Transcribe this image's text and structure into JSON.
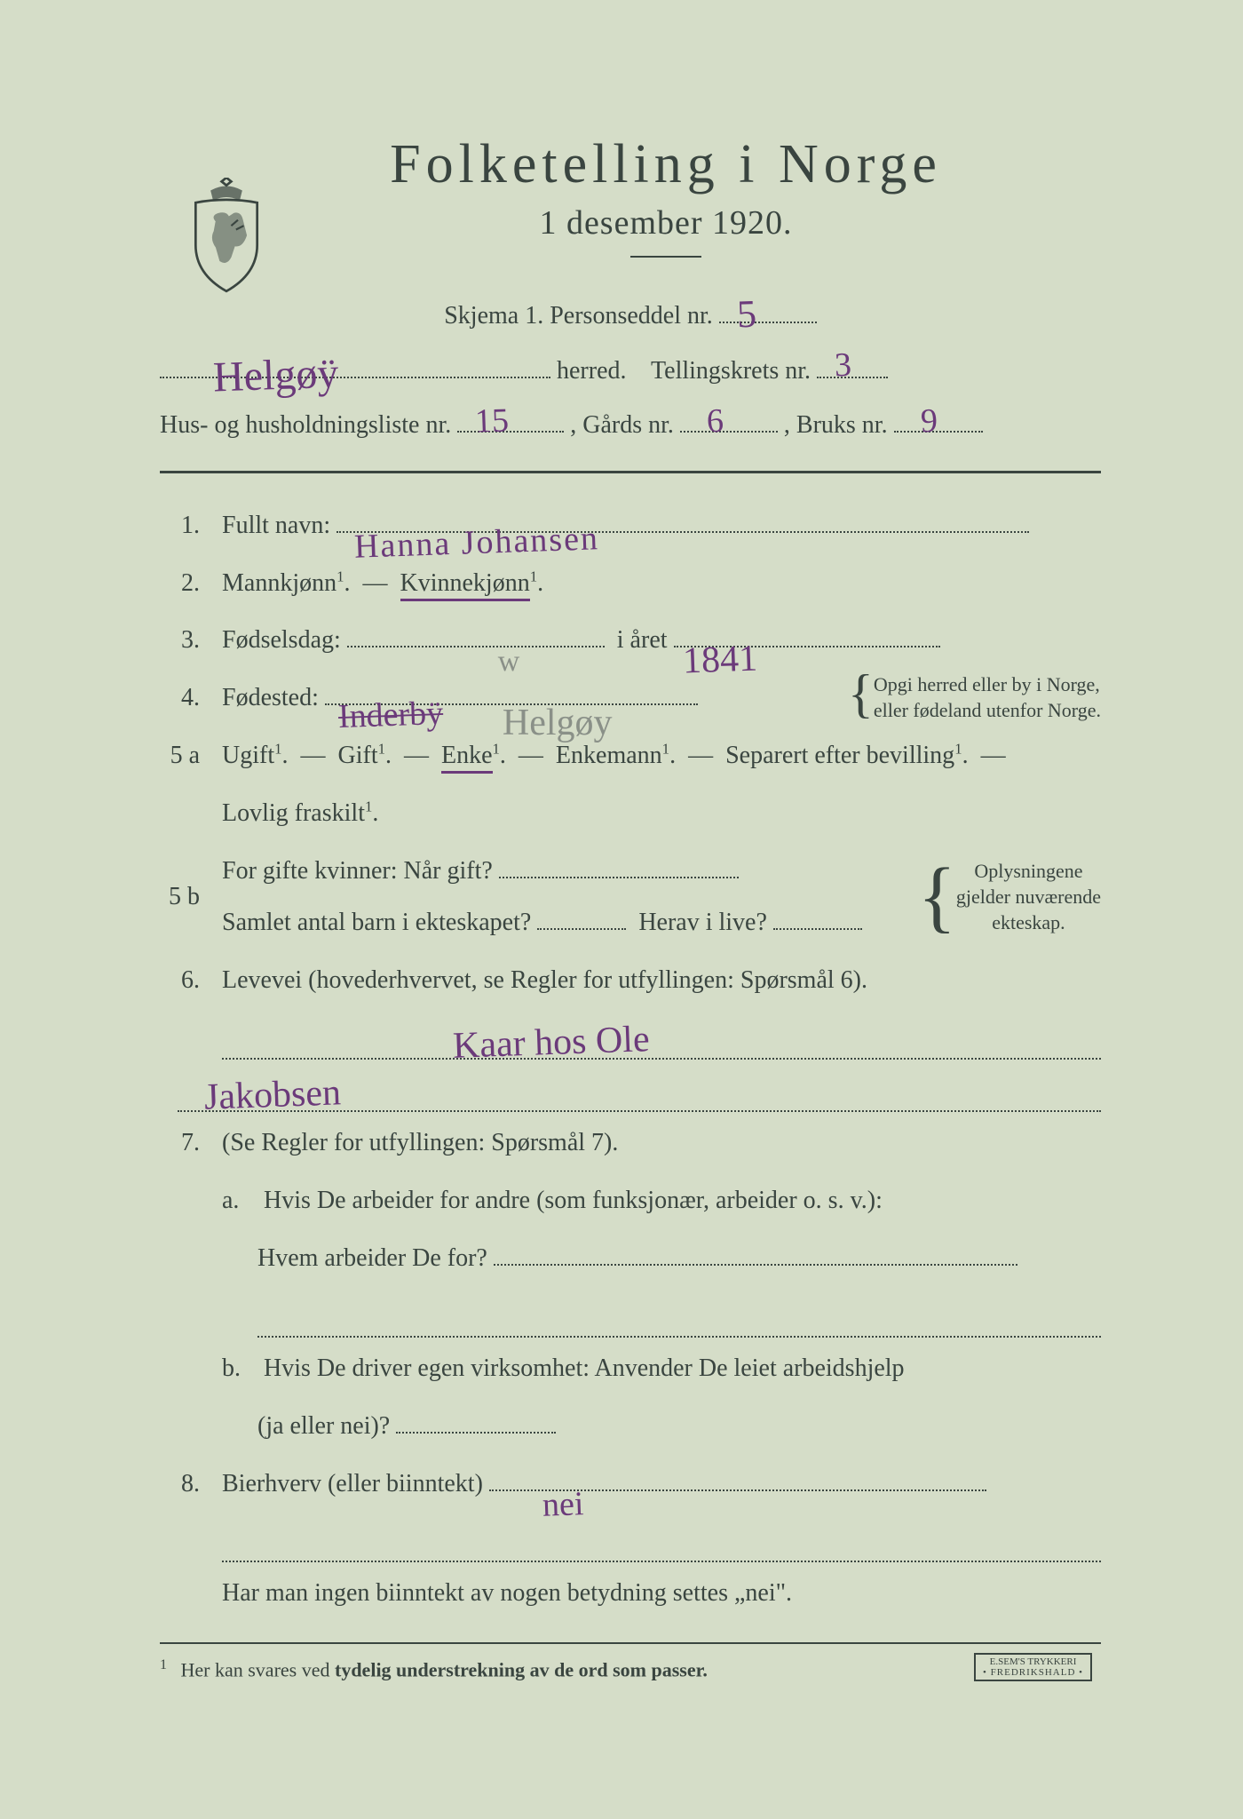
{
  "colors": {
    "paper": "#d5ddc8",
    "print_ink": "#3a4540",
    "handwriting_ink": "#6b3a7a",
    "pencil": "#8a9088"
  },
  "typography": {
    "title_fontsize_pt": 46,
    "subtitle_fontsize_pt": 28,
    "body_fontsize_pt": 21,
    "footnote_fontsize_pt": 16,
    "handwriting_fontsize_pt": 28
  },
  "header": {
    "main_title": "Folketelling i Norge",
    "sub_title": "1 desember 1920.",
    "schema_label": "Skjema 1.  Personseddel nr.",
    "schema_nr_hw": "5",
    "herred_label": "herred.",
    "herred_hw": "Helgøÿ",
    "tellingskrets_label": "Tellingskrets nr.",
    "tellingskrets_hw": "3",
    "hushold_label": "Hus- og husholdningsliste nr.",
    "hushold_hw": "15",
    "gaard_label": ",  Gårds nr.",
    "gaard_hw": "6",
    "bruks_label": ",  Bruks nr.",
    "bruks_hw": "9"
  },
  "q1": {
    "num": "1.",
    "label": "Fullt navn:",
    "hw": "Hanna       Johansen"
  },
  "q2": {
    "num": "2.",
    "opt_a": "Mannkjønn",
    "dash": "—",
    "opt_b": "Kvinnekjønn",
    "selected": "b"
  },
  "q3": {
    "num": "3.",
    "label_a": "Fødselsdag:",
    "hw_day_pencil": "w",
    "label_b": "i året",
    "hw_year": "1841"
  },
  "q4": {
    "num": "4.",
    "label": "Fødested:",
    "hw_struck": "Inderbÿ",
    "hw_pencil": "Helgøy",
    "note_line1": "Opgi herred eller by i Norge,",
    "note_line2": "eller fødeland utenfor Norge."
  },
  "q5a": {
    "num": "5 a",
    "opts": [
      "Ugift",
      "Gift",
      "Enke",
      "Enkemann",
      "Separert efter bevilling",
      "Lovlig fraskilt"
    ],
    "dash": "—",
    "selected_index": 2
  },
  "q5b": {
    "num": "5 b",
    "label_a": "For gifte kvinner:  Når gift?",
    "label_b": "Samlet antal barn i ekteskapet?",
    "label_c": "Herav i live?",
    "note_l1": "Oplysningene",
    "note_l2": "gjelder nuværende",
    "note_l3": "ekteskap."
  },
  "q6": {
    "num": "6.",
    "label": "Levevei (hovederhvervet, se Regler for utfyllingen: Spørsmål 6).",
    "hw_line1": "Kaar     hos Ole",
    "hw_line2": "Jakobsen"
  },
  "q7": {
    "num": "7.",
    "label": "(Se Regler for utfyllingen:   Spørsmål 7).",
    "a_num": "a.",
    "a_text1": "Hvis De arbeider for andre (som funksjonær, arbeider o. s. v.):",
    "a_text2": "Hvem arbeider De for?",
    "b_num": "b.",
    "b_text1": "Hvis De driver egen virksomhet:  Anvender De leiet arbeidshjelp",
    "b_text2": "(ja eller nei)?"
  },
  "q8": {
    "num": "8.",
    "label": "Bierhverv (eller biinntekt)",
    "hw": "nei"
  },
  "footer": {
    "note": "Har man ingen biinntekt av nogen betydning settes „nei\".",
    "fn_num": "1",
    "fn_text_a": "Her kan svares ved ",
    "fn_text_b": "tydelig understrekning av de ord som passer.",
    "stamp_l1": "E.SEM'S TRYKKERI",
    "stamp_l2": "FREDRIKSHALD"
  }
}
